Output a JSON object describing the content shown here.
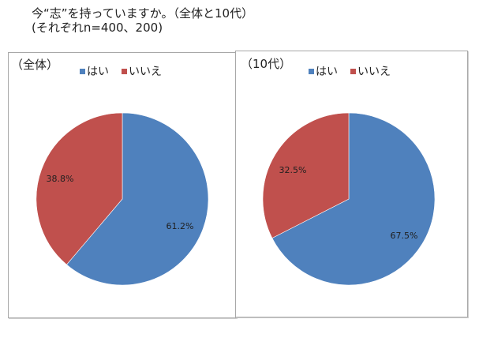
{
  "title": {
    "line1": "今“志”を持っていますか。（全体と10代）",
    "line2": "(それぞれn=400、200)"
  },
  "colors": {
    "yes": "#4F81BD",
    "no": "#C0504D"
  },
  "panels": [
    {
      "label": "（全体）",
      "legend": [
        {
          "label": "はい",
          "color": "#4F81BD"
        },
        {
          "label": "いいえ",
          "color": "#C0504D"
        }
      ],
      "slices": [
        {
          "label": "はい",
          "value": 61.2,
          "text": "61.2%"
        },
        {
          "label": "いいえ",
          "value": 38.8,
          "text": "38.8%"
        }
      ]
    },
    {
      "label": "（10代）",
      "legend": [
        {
          "label": "はい",
          "color": "#4F81BD"
        },
        {
          "label": "いいえ",
          "color": "#C0504D"
        }
      ],
      "slices": [
        {
          "label": "はい",
          "value": 67.5,
          "text": "67.5%"
        },
        {
          "label": "いいえ",
          "value": 32.5,
          "text": "32.5%"
        }
      ]
    }
  ],
  "chart_data": [
    {
      "type": "pie",
      "title": "（全体）",
      "categories": [
        "はい",
        "いいえ"
      ],
      "values": [
        61.2,
        38.8
      ],
      "labels": [
        "61.2%",
        "38.8%"
      ],
      "colors": [
        "#4F81BD",
        "#C0504D"
      ],
      "legend_position": "top",
      "n": 400
    },
    {
      "type": "pie",
      "title": "（10代）",
      "categories": [
        "はい",
        "いいえ"
      ],
      "values": [
        67.5,
        32.5
      ],
      "labels": [
        "67.5%",
        "32.5%"
      ],
      "colors": [
        "#4F81BD",
        "#C0504D"
      ],
      "legend_position": "top",
      "n": 200
    }
  ]
}
